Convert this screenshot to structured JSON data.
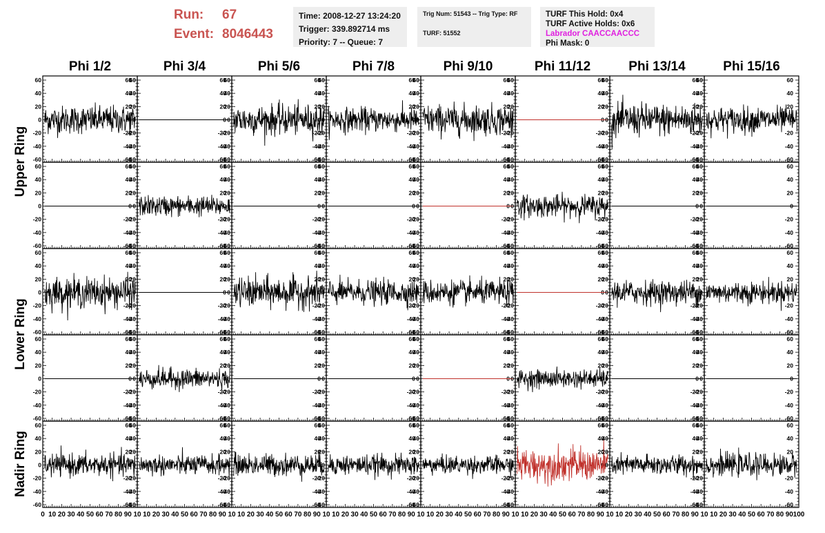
{
  "header": {
    "run_label": "Run:",
    "run_value": "67",
    "event_label": "Event:",
    "event_value": "8046443",
    "time": "Time: 2008-12-27 13:24:20",
    "trigger": "Trigger: 339.892714 ms",
    "priority": "Priority: 7 -- Queue: 7",
    "trig_num": "Trig Num: 51543 -- Trig Type: RF",
    "turf": "TURF: 51552",
    "turf_this_hold": "TURF This Hold: 0x4",
    "turf_active_holds": "TURF Active Holds: 0x6",
    "labrador": "Labrador CAACCAACCC",
    "phi_mask": "Phi Mask: 0"
  },
  "columns": [
    "Phi 1/2",
    "Phi 3/4",
    "Phi 5/6",
    "Phi 7/8",
    "Phi 9/10",
    "Phi 11/12",
    "Phi 13/14",
    "Phi 15/16"
  ],
  "rows": [
    "Upper Ring",
    "Lower Ring",
    "Nadir Ring"
  ],
  "colors": {
    "trace": "#000000",
    "highlight": "#c0302a",
    "run_text": "#c95451",
    "labrador_text": "#e020e0",
    "infobox_bg": "#eeeeee"
  },
  "chart_data": {
    "type": "line",
    "grid": false,
    "ylim": [
      -60,
      60
    ],
    "xlim": [
      0,
      100
    ],
    "yticks": [
      -60,
      -40,
      -20,
      0,
      20,
      40,
      60
    ],
    "xticks": [
      0,
      10,
      20,
      30,
      40,
      50,
      60,
      70,
      80,
      90
    ],
    "xtick_labels_bottom": [
      "0",
      "10",
      "20",
      "30",
      "40",
      "50",
      "60",
      "70",
      "80",
      "90",
      "10",
      "10",
      "20",
      "30",
      "40",
      "50",
      "60",
      "70",
      "80",
      "90",
      "10",
      "10",
      "20",
      "30",
      "40",
      "50",
      "60",
      "70",
      "80",
      "90",
      "10",
      "10",
      "20",
      "30",
      "40",
      "50",
      "60",
      "70",
      "80",
      "90",
      "10",
      "10",
      "20",
      "30",
      "40",
      "50",
      "60",
      "70",
      "80",
      "90",
      "10",
      "10",
      "20",
      "30",
      "40",
      "50",
      "60",
      "70",
      "80",
      "90",
      "10",
      "10",
      "20",
      "30",
      "40",
      "50",
      "60",
      "70",
      "80",
      "90",
      "10",
      "10",
      "20",
      "30",
      "40",
      "50",
      "60",
      "70",
      "80",
      "90",
      "100"
    ],
    "panels": [
      [
        {
          "mode": "noise",
          "amp": 14,
          "color": "trace"
        },
        {
          "mode": "flat",
          "color": "trace"
        },
        {
          "mode": "noise",
          "amp": 15,
          "color": "trace"
        },
        {
          "mode": "noise",
          "amp": 12,
          "color": "trace"
        },
        {
          "mode": "noise",
          "amp": 15,
          "color": "trace"
        },
        {
          "mode": "flat",
          "color": "highlight"
        },
        {
          "mode": "noise",
          "amp": 16,
          "color": "trace"
        },
        {
          "mode": "noise",
          "amp": 13,
          "color": "trace"
        }
      ],
      [
        {
          "mode": "flat",
          "color": "trace"
        },
        {
          "mode": "noise",
          "amp": 10,
          "color": "trace"
        },
        {
          "mode": "flat",
          "color": "trace"
        },
        {
          "mode": "flat",
          "color": "trace"
        },
        {
          "mode": "flat",
          "color": "highlight"
        },
        {
          "mode": "noise",
          "amp": 11,
          "color": "trace"
        },
        {
          "mode": "flat",
          "color": "trace"
        },
        {
          "mode": "flat",
          "color": "trace"
        }
      ],
      [
        {
          "mode": "noise",
          "amp": 15,
          "color": "trace"
        },
        {
          "mode": "flat",
          "color": "trace"
        },
        {
          "mode": "noise",
          "amp": 15,
          "color": "trace"
        },
        {
          "mode": "noise",
          "amp": 12,
          "color": "trace"
        },
        {
          "mode": "noise",
          "amp": 12,
          "color": "trace"
        },
        {
          "mode": "flat",
          "color": "highlight"
        },
        {
          "mode": "noise",
          "amp": 12,
          "color": "trace"
        },
        {
          "mode": "noise",
          "amp": 11,
          "color": "trace"
        }
      ],
      [
        {
          "mode": "flat",
          "color": "trace"
        },
        {
          "mode": "noise",
          "amp": 10,
          "color": "trace"
        },
        {
          "mode": "flat",
          "color": "trace"
        },
        {
          "mode": "flat",
          "color": "trace"
        },
        {
          "mode": "flat",
          "color": "highlight"
        },
        {
          "mode": "noise",
          "amp": 9,
          "color": "trace"
        },
        {
          "mode": "flat",
          "color": "trace"
        },
        {
          "mode": "flat",
          "color": "trace"
        }
      ],
      [
        {
          "mode": "noise",
          "amp": 11,
          "color": "trace"
        },
        {
          "mode": "noise",
          "amp": 10,
          "color": "trace"
        },
        {
          "mode": "noise",
          "amp": 11,
          "color": "trace"
        },
        {
          "mode": "noise",
          "amp": 10,
          "color": "trace"
        },
        {
          "mode": "noise",
          "amp": 9,
          "color": "trace"
        },
        {
          "mode": "noise",
          "amp": 16,
          "color": "highlight"
        },
        {
          "mode": "noise",
          "amp": 10,
          "color": "trace"
        },
        {
          "mode": "noise",
          "amp": 11,
          "color": "trace"
        }
      ]
    ]
  }
}
